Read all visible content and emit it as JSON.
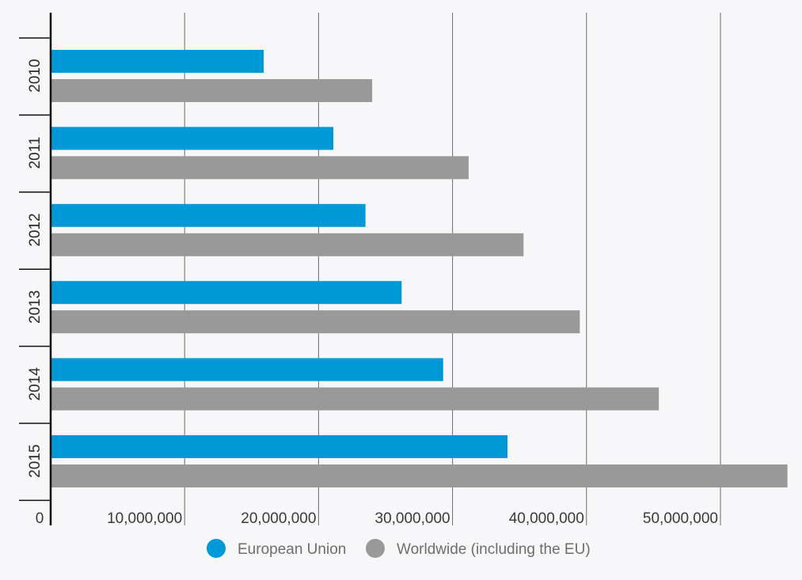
{
  "chart_data": {
    "type": "bar",
    "orientation": "horizontal",
    "categories": [
      "2010",
      "2011",
      "2012",
      "2013",
      "2014",
      "2015"
    ],
    "series": [
      {
        "name": "European Union",
        "color": "#0099d8",
        "values": [
          15900000,
          21100000,
          23500000,
          26200000,
          29300000,
          34100000
        ]
      },
      {
        "name": "Worldwide (including the EU)",
        "color": "#999999",
        "values": [
          24000000,
          31200000,
          35300000,
          39500000,
          45400000,
          55000000
        ]
      }
    ],
    "x_ticks": [
      0,
      10000000,
      20000000,
      30000000,
      40000000,
      50000000
    ],
    "x_tick_labels": [
      "0",
      "10,000,000",
      "20,000,000",
      "30,000,000",
      "40,000,000",
      "50,000,000"
    ],
    "xlim": [
      0,
      55000000
    ],
    "grid": true,
    "legend_position": "bottom-center",
    "title": "",
    "xlabel": "",
    "ylabel": ""
  }
}
